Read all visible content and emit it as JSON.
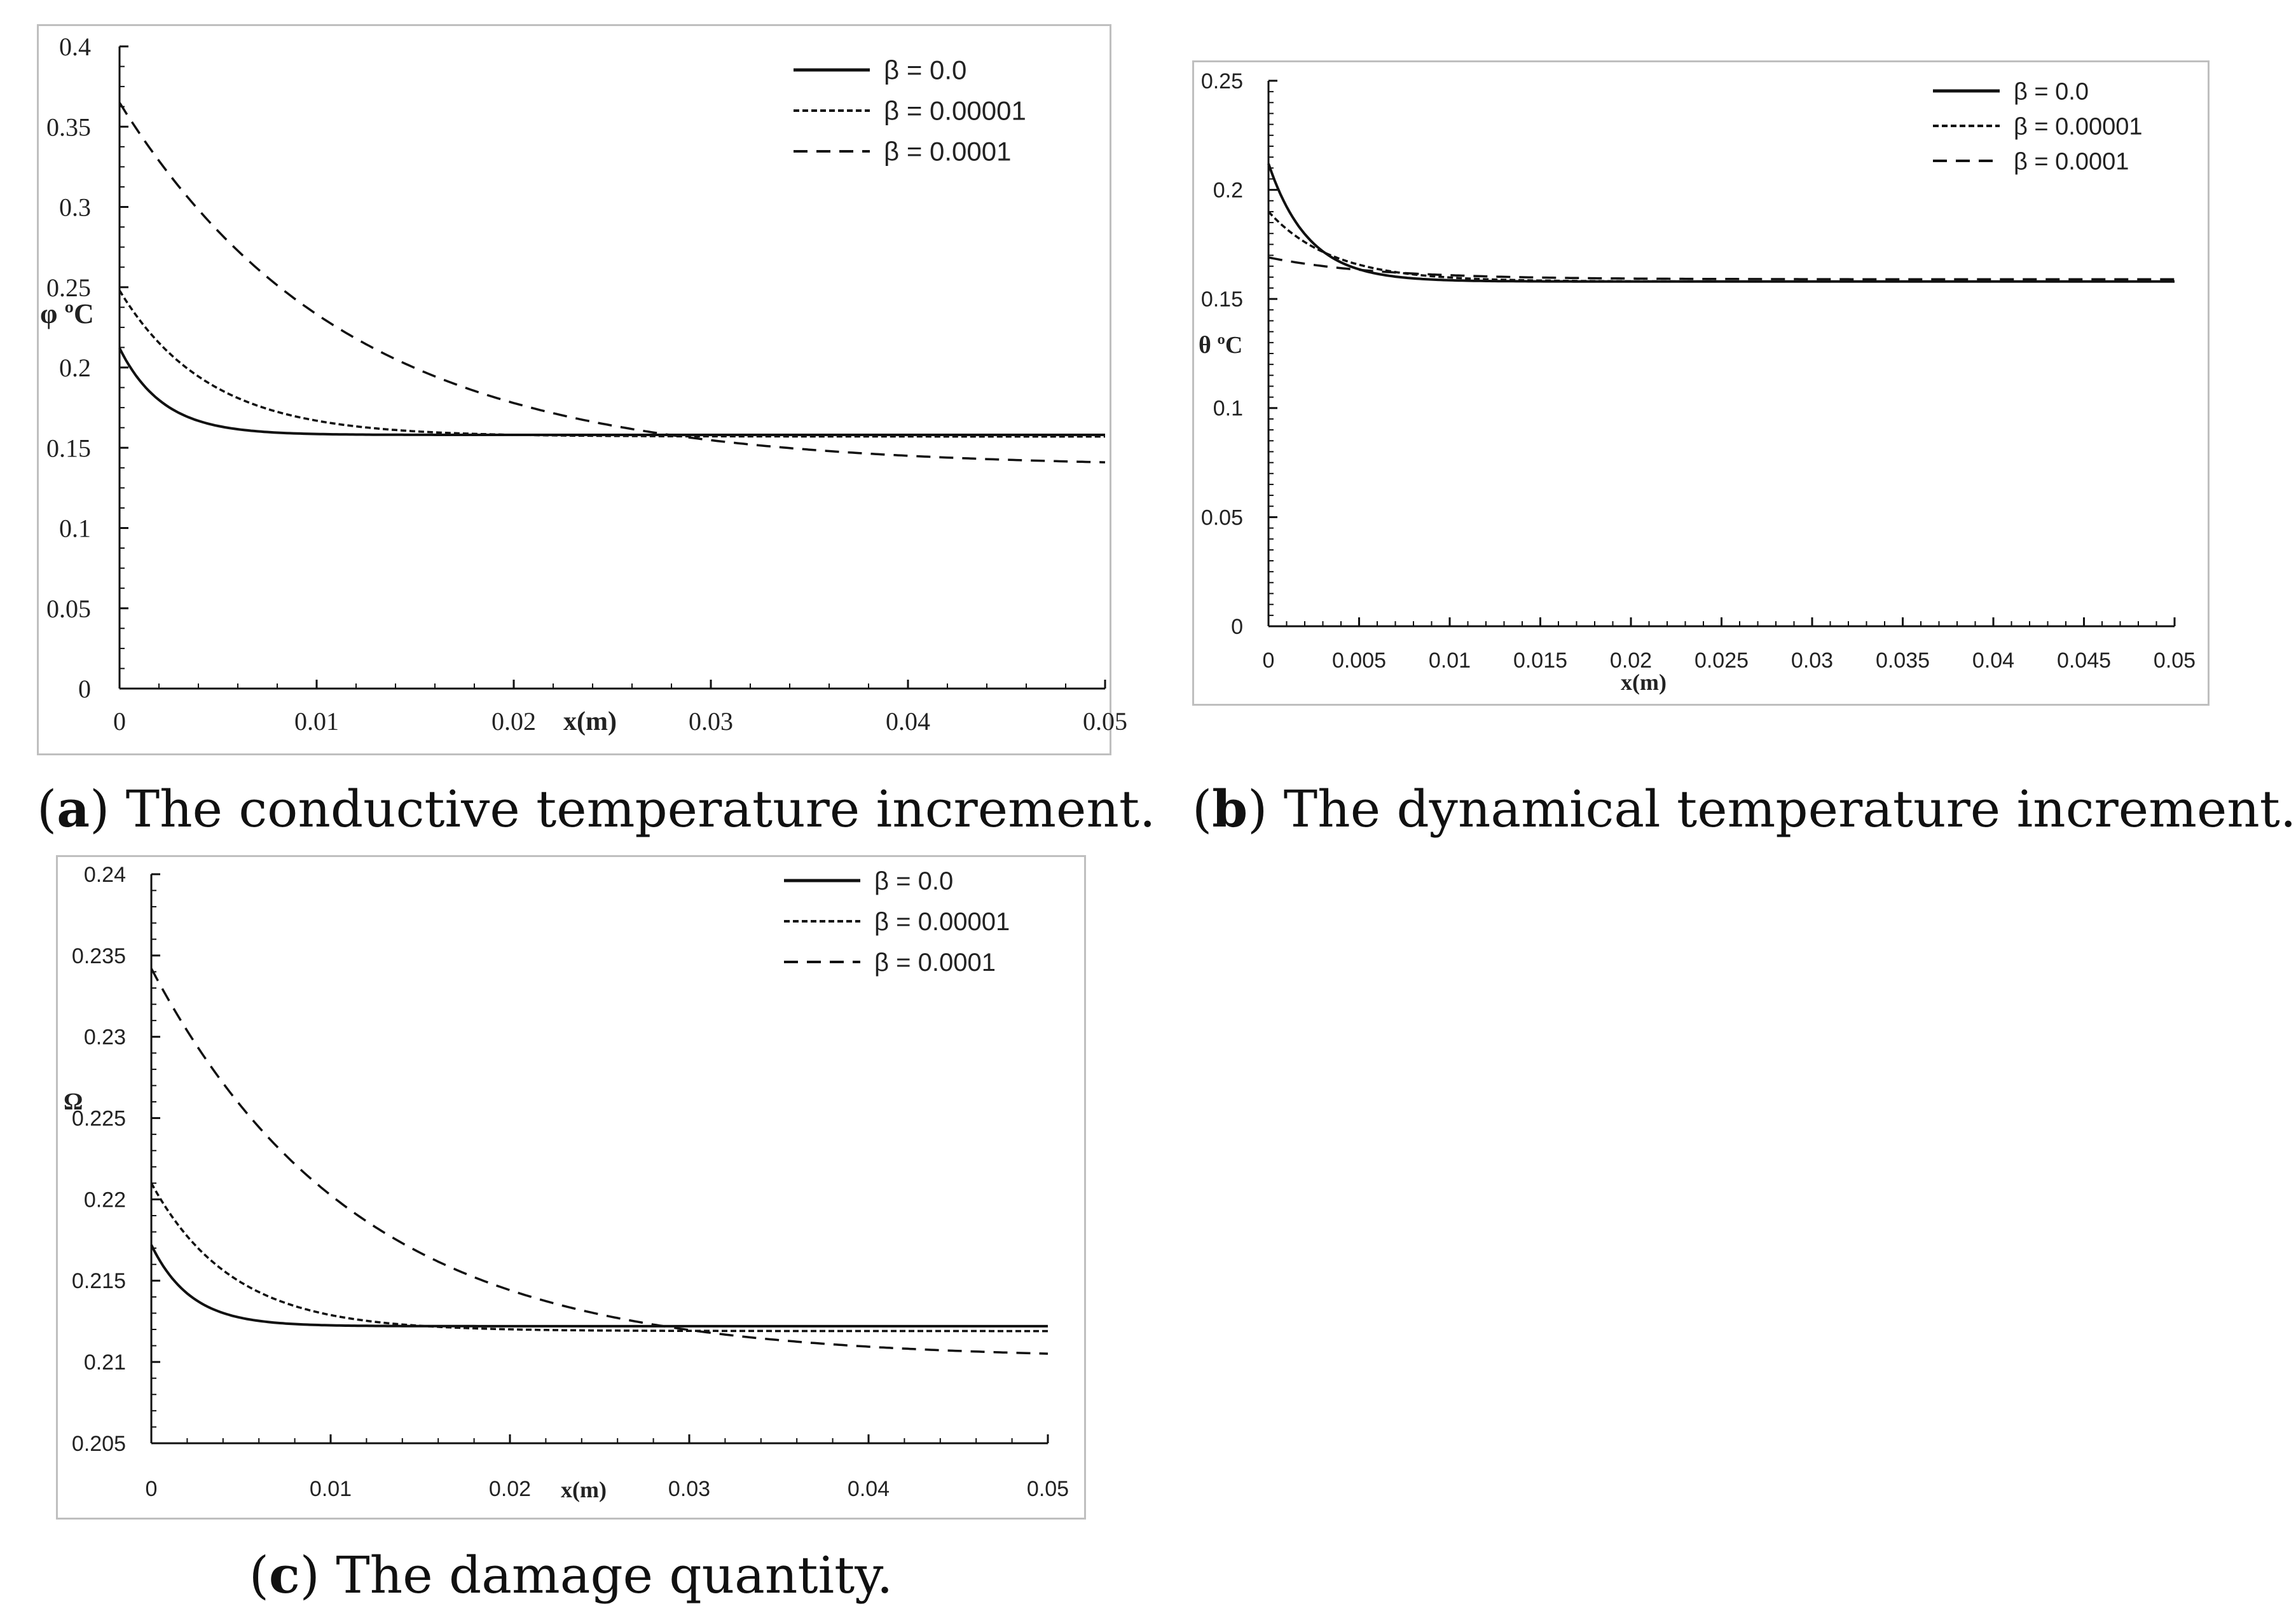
{
  "chart_data": [
    {
      "id": "a",
      "type": "line",
      "caption_letter": "a",
      "caption_text": " The conductive temperature increment.",
      "xlabel": "x(m)",
      "ylabel": "φ ºC",
      "xlim": [
        0,
        0.05
      ],
      "ylim": [
        0,
        0.4
      ],
      "xticks": [
        "0",
        "0.01",
        "0.02",
        "0.03",
        "0.04",
        "0.05"
      ],
      "yticks": [
        "0",
        "0.05",
        "0.1",
        "0.15",
        "0.2",
        "0.25",
        "0.3",
        "0.35",
        "0.4"
      ],
      "legend_position": "top-right",
      "series": [
        {
          "name": "β = 0.0",
          "style": "solid",
          "start": 0.212,
          "end": 0.158,
          "decay": 0.0022
        },
        {
          "name": "β = 0.00001",
          "style": "dotted-dash",
          "start": 0.248,
          "end": 0.157,
          "decay": 0.0045
        },
        {
          "name": "β = 0.0001",
          "style": "dashed",
          "start": 0.365,
          "end": 0.138,
          "decay": 0.0115
        }
      ]
    },
    {
      "id": "b",
      "type": "line",
      "caption_letter": "b",
      "caption_text": " The dynamical temperature increment.",
      "xlabel": "x(m)",
      "ylabel": "θ ºC",
      "xlim": [
        0,
        0.05
      ],
      "ylim": [
        0,
        0.25
      ],
      "xticks": [
        "0",
        "0.005",
        "0.01",
        "0.015",
        "0.02",
        "0.025",
        "0.03",
        "0.035",
        "0.04",
        "0.045",
        "0.05"
      ],
      "yticks": [
        "0",
        "0.05",
        "0.1",
        "0.15",
        "0.2",
        "0.25"
      ],
      "legend_position": "top-right",
      "series": [
        {
          "name": "β = 0.0",
          "style": "solid",
          "start": 0.212,
          "end": 0.158,
          "decay": 0.0022
        },
        {
          "name": "β = 0.00001",
          "style": "dotted-dash",
          "start": 0.19,
          "end": 0.158,
          "decay": 0.0035
        },
        {
          "name": "β = 0.0001",
          "style": "dashed",
          "start": 0.169,
          "end": 0.159,
          "decay": 0.006
        }
      ]
    },
    {
      "id": "c",
      "type": "line",
      "caption_letter": "c",
      "caption_text": " The damage quantity.",
      "xlabel": "x(m)",
      "ylabel": "Ω",
      "xlim": [
        0,
        0.05
      ],
      "ylim": [
        0.205,
        0.24
      ],
      "xticks": [
        "0",
        "0.01",
        "0.02",
        "0.03",
        "0.04",
        "0.05"
      ],
      "yticks": [
        "0.205",
        "0.21",
        "0.215",
        "0.22",
        "0.225",
        "0.23",
        "0.235",
        "0.24"
      ],
      "legend_position": "top-right",
      "series": [
        {
          "name": "β = 0.0",
          "style": "solid",
          "start": 0.2172,
          "end": 0.2122,
          "decay": 0.0022
        },
        {
          "name": "β = 0.00001",
          "style": "dotted-dash",
          "start": 0.221,
          "end": 0.2119,
          "decay": 0.0045
        },
        {
          "name": "β = 0.0001",
          "style": "dashed",
          "start": 0.2342,
          "end": 0.2102,
          "decay": 0.0115
        }
      ]
    }
  ]
}
